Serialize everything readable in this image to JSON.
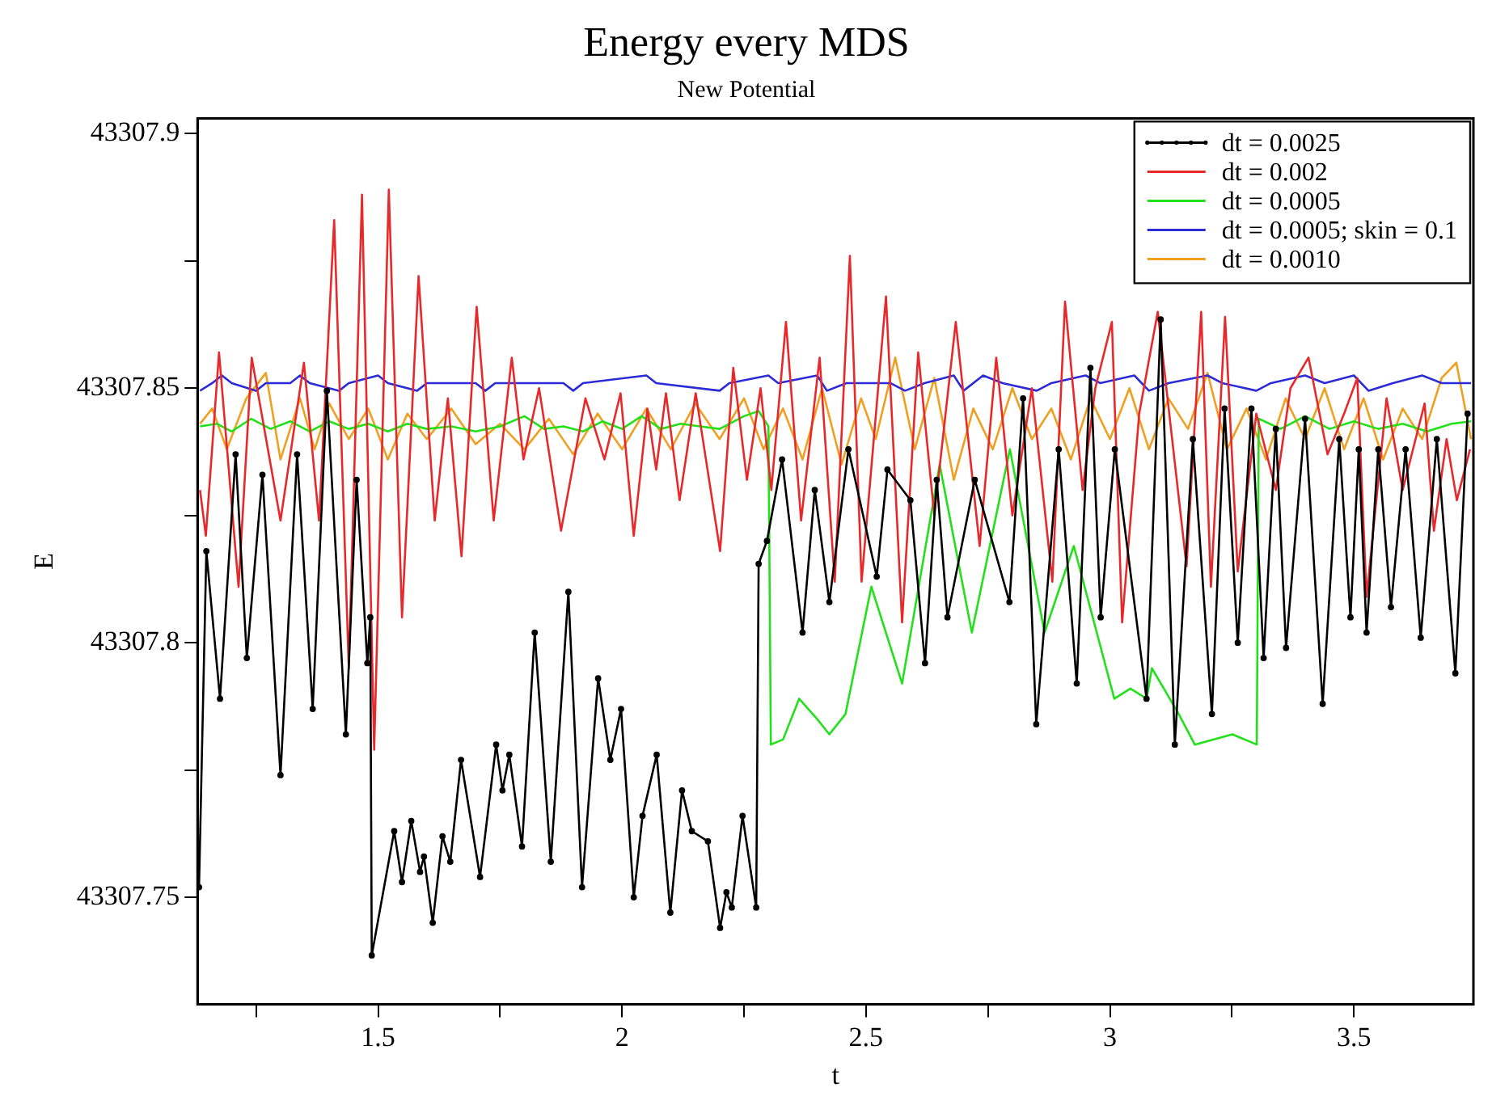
{
  "chart_data": {
    "type": "line",
    "title": "Energy every MDS",
    "subtitle": "New Potential",
    "xlabel": "t",
    "ylabel": "E",
    "xlim": [
      1.13,
      3.745
    ],
    "ylim": [
      43307.729,
      43307.903
    ],
    "xticks": [
      {
        "value": 1.25,
        "label": null
      },
      1.5,
      {
        "value": 1.75,
        "label": null
      },
      2,
      {
        "value": 2.25,
        "label": null
      },
      2.5,
      {
        "value": 2.75,
        "label": null
      },
      3,
      {
        "value": 3.25,
        "label": null
      },
      3.5
    ],
    "yticks": [
      43307.75,
      {
        "value": 43307.775,
        "label": null
      },
      43307.8,
      {
        "value": 43307.825,
        "label": null
      },
      43307.85,
      {
        "value": 43307.875,
        "label": null
      },
      43307.9
    ],
    "grid": false,
    "legend": "top right",
    "line_style": "solid",
    "series": [
      {
        "name": "dt = 0.0025",
        "color": "#000000",
        "marker": "circle",
        "x": [
          1.133,
          1.148,
          1.176,
          1.208,
          1.231,
          1.263,
          1.3,
          1.334,
          1.366,
          1.395,
          1.434,
          1.456,
          1.478,
          1.484,
          1.487,
          1.533,
          1.549,
          1.568,
          1.586,
          1.594,
          1.612,
          1.632,
          1.648,
          1.67,
          1.709,
          1.742,
          1.755,
          1.769,
          1.795,
          1.821,
          1.854,
          1.89,
          1.918,
          1.951,
          1.976,
          1.998,
          2.024,
          2.042,
          2.071,
          2.099,
          2.123,
          2.143,
          2.176,
          2.201,
          2.214,
          2.225,
          2.247,
          2.275,
          2.28,
          2.297,
          2.328,
          2.37,
          2.395,
          2.425,
          2.464,
          2.522,
          2.544,
          2.591,
          2.621,
          2.645,
          2.667,
          2.723,
          2.794,
          2.822,
          2.849,
          2.895,
          2.932,
          2.96,
          2.981,
          3.01,
          3.075,
          3.104,
          3.133,
          3.17,
          3.209,
          3.235,
          3.262,
          3.29,
          3.315,
          3.34,
          3.361,
          3.4,
          3.436,
          3.47,
          3.493,
          3.51,
          3.526,
          3.55,
          3.576,
          3.606,
          3.637,
          3.67,
          3.708,
          3.733
        ],
        "values": [
          43307.752,
          43307.818,
          43307.789,
          43307.837,
          43307.797,
          43307.833,
          43307.774,
          43307.837,
          43307.787,
          43307.8495,
          43307.782,
          43307.832,
          43307.796,
          43307.805,
          43307.7386,
          43307.763,
          43307.753,
          43307.765,
          43307.755,
          43307.758,
          43307.745,
          43307.762,
          43307.757,
          43307.777,
          43307.754,
          43307.78,
          43307.771,
          43307.778,
          43307.76,
          43307.802,
          43307.757,
          43307.81,
          43307.752,
          43307.793,
          43307.777,
          43307.787,
          43307.75,
          43307.766,
          43307.778,
          43307.747,
          43307.771,
          43307.763,
          43307.761,
          43307.744,
          43307.751,
          43307.748,
          43307.766,
          43307.748,
          43307.8155,
          43307.82,
          43307.836,
          43307.802,
          43307.83,
          43307.808,
          43307.838,
          43307.813,
          43307.834,
          43307.828,
          43307.796,
          43307.832,
          43307.805,
          43307.832,
          43307.808,
          43307.848,
          43307.784,
          43307.838,
          43307.792,
          43307.854,
          43307.805,
          43307.838,
          43307.789,
          43307.8635,
          43307.78,
          43307.84,
          43307.786,
          43307.846,
          43307.8,
          43307.846,
          43307.797,
          43307.842,
          43307.799,
          43307.844,
          43307.788,
          43307.84,
          43307.805,
          43307.838,
          43307.802,
          43307.838,
          43307.807,
          43307.838,
          43307.801,
          43307.84,
          43307.794,
          43307.845
        ]
      },
      {
        "name": "dt = 0.002",
        "color": "#e8292b",
        "marker": "none",
        "x": [
          1.135,
          1.147,
          1.174,
          1.214,
          1.241,
          1.3,
          1.348,
          1.379,
          1.41,
          1.44,
          1.467,
          1.492,
          1.522,
          1.549,
          1.583,
          1.616,
          1.643,
          1.671,
          1.702,
          1.737,
          1.774,
          1.798,
          1.83,
          1.875,
          1.925,
          1.964,
          1.997,
          2.024,
          2.052,
          2.07,
          2.09,
          2.118,
          2.151,
          2.201,
          2.228,
          2.256,
          2.284,
          2.306,
          2.336,
          2.367,
          2.405,
          2.436,
          2.467,
          2.491,
          2.541,
          2.574,
          2.607,
          2.64,
          2.684,
          2.733,
          2.767,
          2.8,
          2.84,
          2.882,
          2.908,
          2.944,
          2.97,
          3.004,
          3.025,
          3.06,
          3.098,
          3.157,
          3.187,
          3.207,
          3.236,
          3.262,
          3.3,
          3.34,
          3.37,
          3.407,
          3.446,
          3.48,
          3.507,
          3.526,
          3.567,
          3.6,
          3.645,
          3.664,
          3.69,
          3.711,
          3.738
        ],
        "values": [
          43307.83,
          43307.821,
          43307.857,
          43307.811,
          43307.856,
          43307.824,
          43307.855,
          43307.824,
          43307.883,
          43307.795,
          43307.888,
          43307.779,
          43307.889,
          43307.805,
          43307.872,
          43307.824,
          43307.848,
          43307.817,
          43307.866,
          43307.824,
          43307.856,
          43307.836,
          43307.85,
          43307.822,
          43307.848,
          43307.836,
          43307.849,
          43307.821,
          43307.846,
          43307.834,
          43307.849,
          43307.828,
          43307.849,
          43307.818,
          43307.854,
          43307.832,
          43307.85,
          43307.83,
          43307.863,
          43307.824,
          43307.856,
          43307.812,
          43307.876,
          43307.812,
          43307.868,
          43307.804,
          43307.857,
          43307.825,
          43307.863,
          43307.819,
          43307.856,
          43307.825,
          43307.85,
          43307.812,
          43307.867,
          43307.83,
          43307.85,
          43307.863,
          43307.804,
          43307.845,
          43307.865,
          43307.815,
          43307.865,
          43307.811,
          43307.864,
          43307.814,
          43307.845,
          43307.83,
          43307.85,
          43307.856,
          43307.837,
          43307.845,
          43307.852,
          43307.809,
          43307.848,
          43307.83,
          43307.847,
          43307.822,
          43307.84,
          43307.828,
          43307.838
        ]
      },
      {
        "name": "dt = 0.0005",
        "color": "#22e01a",
        "marker": "none",
        "x": [
          1.135,
          1.17,
          1.2,
          1.24,
          1.28,
          1.32,
          1.36,
          1.4,
          1.44,
          1.48,
          1.52,
          1.56,
          1.6,
          1.65,
          1.7,
          1.75,
          1.8,
          1.84,
          1.88,
          1.92,
          1.96,
          2,
          2.04,
          2.08,
          2.12,
          2.16,
          2.2,
          2.25,
          2.28,
          2.3,
          2.305,
          2.33,
          2.363,
          2.4,
          2.425,
          2.458,
          2.511,
          2.574,
          2.651,
          2.717,
          2.795,
          2.866,
          2.926,
          3.009,
          3.042,
          3.075,
          3.086,
          3.141,
          3.174,
          3.251,
          3.301,
          3.305,
          3.35,
          3.4,
          3.45,
          3.5,
          3.55,
          3.6,
          3.65,
          3.7,
          3.74
        ],
        "values": [
          43307.8425,
          43307.843,
          43307.8415,
          43307.844,
          43307.842,
          43307.8435,
          43307.8415,
          43307.8435,
          43307.842,
          43307.843,
          43307.8415,
          43307.843,
          43307.842,
          43307.8425,
          43307.8415,
          43307.8425,
          43307.8445,
          43307.842,
          43307.8425,
          43307.8415,
          43307.8435,
          43307.842,
          43307.8445,
          43307.842,
          43307.843,
          43307.8425,
          43307.842,
          43307.8445,
          43307.8455,
          43307.8425,
          43307.78,
          43307.781,
          43307.789,
          43307.785,
          43307.782,
          43307.786,
          43307.811,
          43307.792,
          43307.835,
          43307.802,
          43307.838,
          43307.802,
          43307.819,
          43307.789,
          43307.791,
          43307.789,
          43307.795,
          43307.786,
          43307.78,
          43307.782,
          43307.78,
          43307.844,
          43307.842,
          43307.8445,
          43307.842,
          43307.8435,
          43307.842,
          43307.843,
          43307.8415,
          43307.843,
          43307.8435
        ]
      },
      {
        "name": "dt = 0.0005; skin = 0.1",
        "color": "#2b2bd8",
        "marker": "none",
        "x": [
          1.135,
          1.16,
          1.18,
          1.2,
          1.25,
          1.27,
          1.32,
          1.34,
          1.36,
          1.42,
          1.44,
          1.5,
          1.52,
          1.58,
          1.6,
          1.7,
          1.72,
          1.74,
          1.88,
          1.9,
          1.92,
          2.05,
          2.07,
          2.2,
          2.22,
          2.3,
          2.32,
          2.4,
          2.42,
          2.46,
          2.55,
          2.58,
          2.62,
          2.68,
          2.7,
          2.74,
          2.78,
          2.85,
          2.88,
          2.95,
          2.98,
          3.05,
          3.08,
          3.12,
          3.2,
          3.23,
          3.3,
          3.33,
          3.4,
          3.44,
          3.5,
          3.53,
          3.58,
          3.64,
          3.68,
          3.74
        ],
        "values": [
          43307.8495,
          43307.851,
          43307.8525,
          43307.851,
          43307.8495,
          43307.851,
          43307.851,
          43307.8525,
          43307.851,
          43307.8495,
          43307.851,
          43307.8525,
          43307.851,
          43307.8495,
          43307.851,
          43307.851,
          43307.8495,
          43307.851,
          43307.851,
          43307.8495,
          43307.851,
          43307.8525,
          43307.851,
          43307.8495,
          43307.851,
          43307.8525,
          43307.851,
          43307.8525,
          43307.8495,
          43307.851,
          43307.851,
          43307.8495,
          43307.851,
          43307.8525,
          43307.8495,
          43307.8525,
          43307.851,
          43307.8495,
          43307.851,
          43307.8525,
          43307.851,
          43307.8525,
          43307.8495,
          43307.851,
          43307.8525,
          43307.851,
          43307.8495,
          43307.851,
          43307.8525,
          43307.851,
          43307.8525,
          43307.8495,
          43307.851,
          43307.8525,
          43307.851,
          43307.851
        ]
      },
      {
        "name": "dt = 0.0010",
        "color": "#f0a020",
        "marker": "none",
        "x": [
          1.135,
          1.16,
          1.19,
          1.23,
          1.27,
          1.3,
          1.34,
          1.37,
          1.4,
          1.44,
          1.48,
          1.52,
          1.56,
          1.6,
          1.65,
          1.7,
          1.75,
          1.8,
          1.85,
          1.9,
          1.95,
          2,
          2.05,
          2.1,
          2.15,
          2.2,
          2.25,
          2.29,
          2.33,
          2.37,
          2.41,
          2.45,
          2.49,
          2.52,
          2.56,
          2.6,
          2.64,
          2.68,
          2.72,
          2.76,
          2.8,
          2.84,
          2.88,
          2.92,
          2.96,
          3,
          3.04,
          3.08,
          3.12,
          3.16,
          3.2,
          3.24,
          3.28,
          3.32,
          3.36,
          3.4,
          3.44,
          3.48,
          3.52,
          3.56,
          3.6,
          3.64,
          3.68,
          3.71,
          3.74
        ],
        "values": [
          43307.843,
          43307.846,
          43307.838,
          43307.848,
          43307.853,
          43307.836,
          43307.848,
          43307.838,
          43307.847,
          43307.84,
          43307.846,
          43307.836,
          43307.845,
          43307.84,
          43307.846,
          43307.839,
          43307.843,
          43307.838,
          43307.844,
          43307.837,
          43307.845,
          43307.838,
          43307.846,
          43307.838,
          43307.847,
          43307.84,
          43307.848,
          43307.838,
          43307.846,
          43307.836,
          43307.85,
          43307.835,
          43307.848,
          43307.84,
          43307.856,
          43307.838,
          43307.852,
          43307.832,
          43307.846,
          43307.838,
          43307.85,
          43307.84,
          43307.846,
          43307.836,
          43307.848,
          43307.84,
          43307.85,
          43307.838,
          43307.848,
          43307.842,
          43307.853,
          43307.838,
          43307.846,
          43307.836,
          43307.848,
          43307.84,
          43307.85,
          43307.838,
          43307.848,
          43307.836,
          43307.846,
          43307.84,
          43307.852,
          43307.855,
          43307.84
        ]
      }
    ]
  }
}
